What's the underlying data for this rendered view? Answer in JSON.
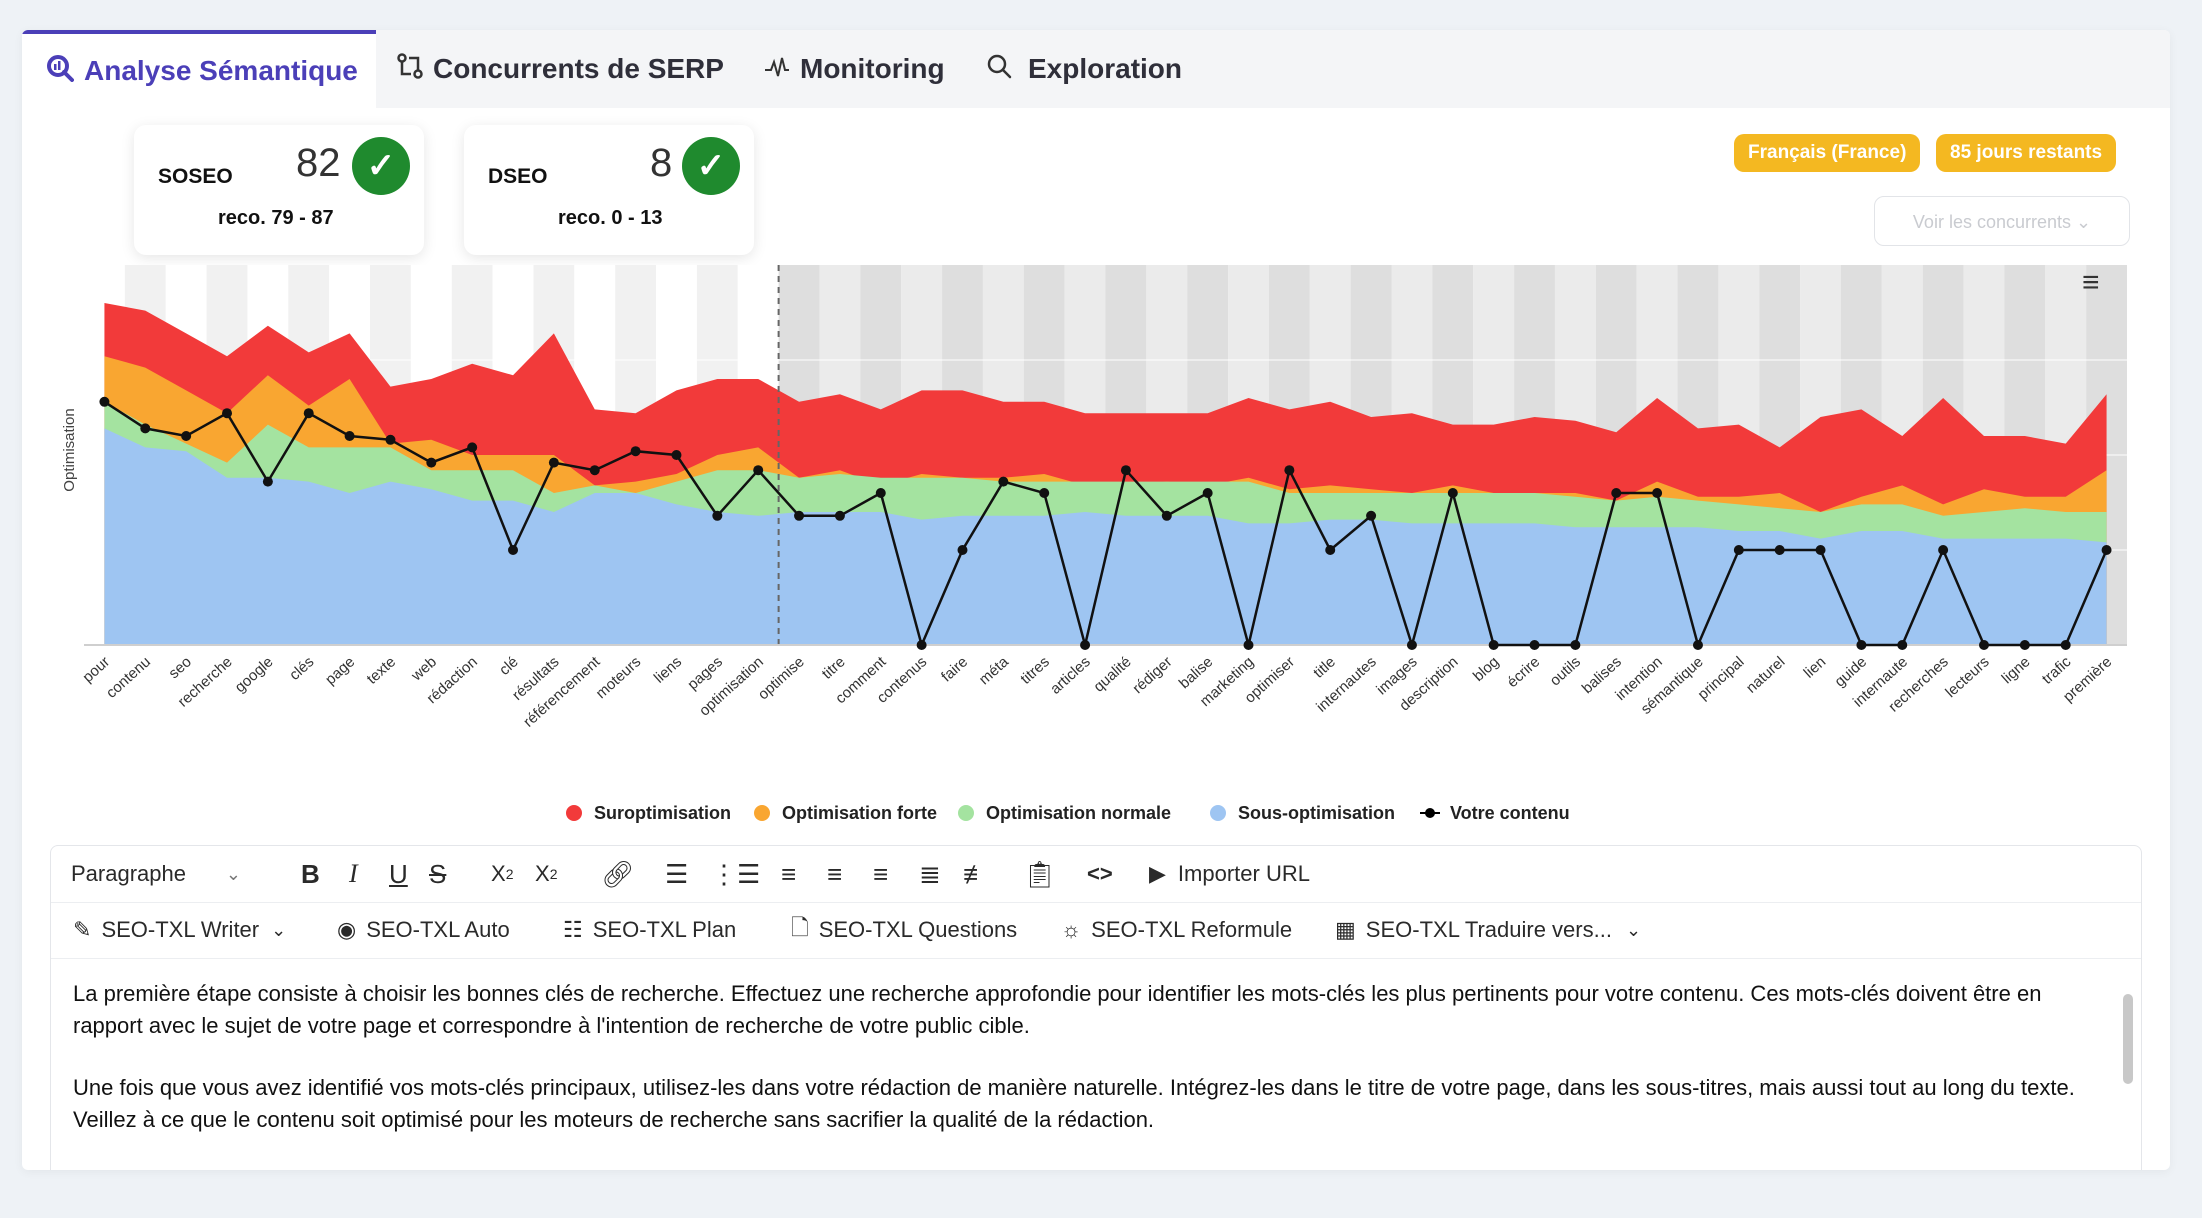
{
  "tabs": [
    {
      "label": "Analyse Sémantique",
      "icon": "search-analytics-icon",
      "active": true
    },
    {
      "label": "Concurrents de SERP",
      "icon": "compare-icon",
      "active": false
    },
    {
      "label": "Monitoring",
      "icon": "pulse-icon",
      "active": false
    },
    {
      "label": "Exploration",
      "icon": "search-icon",
      "active": false
    }
  ],
  "scores": {
    "soseo": {
      "label": "SOSEO",
      "value": "82",
      "reco": "reco. 79 - 87"
    },
    "dseo": {
      "label": "DSEO",
      "value": "8",
      "reco": "reco. 0 - 13"
    }
  },
  "badges": {
    "language": "Français (France)",
    "days": "85 jours restants"
  },
  "competitors_button": "Voir les concurrents ⌄",
  "colors": {
    "accent": "#4b3fb8",
    "badge": "#f4b821",
    "check": "#1f8a2e",
    "red": "#f23a3a",
    "orange": "#f9a631",
    "green": "#a4e3a0",
    "blue": "#9ec5f2"
  },
  "chart_data": {
    "type": "area",
    "ylabel": "Optimisation",
    "legend_position": "bottom",
    "x": [
      "pour",
      "contenu",
      "seo",
      "recherche",
      "google",
      "clés",
      "page",
      "texte",
      "web",
      "rédaction",
      "clé",
      "résultats",
      "référencement",
      "moteurs",
      "liens",
      "pages",
      "optimisation",
      "optimise",
      "titre",
      "comment",
      "contenus",
      "faire",
      "méta",
      "titres",
      "articles",
      "qualité",
      "rédiger",
      "balise",
      "marketing",
      "optimiser",
      "title",
      "internautes",
      "images",
      "description",
      "blog",
      "écrire",
      "outils",
      "balises",
      "intention",
      "sémantique",
      "principal",
      "naturel",
      "lien",
      "guide",
      "internaute",
      "recherches",
      "lecteurs",
      "ligne",
      "trafic",
      "première"
    ],
    "series": [
      {
        "name": "Sous-optimisation",
        "color": "#9ec5f2",
        "values": [
          57,
          52,
          51,
          44,
          44,
          43,
          40,
          43,
          41,
          38,
          38,
          35,
          40,
          40,
          37,
          35,
          34,
          35,
          35,
          35,
          33,
          34,
          34,
          34,
          35,
          34,
          34,
          34,
          32,
          32,
          33,
          33,
          32,
          32,
          32,
          32,
          31,
          31,
          31,
          31,
          30,
          30,
          28,
          30,
          30,
          28,
          28,
          28,
          28,
          27
        ]
      },
      {
        "name": "Optimisation normale",
        "color": "#a4e3a0",
        "values": [
          64,
          58,
          53,
          48,
          58,
          52,
          52,
          52,
          46,
          46,
          46,
          40,
          42,
          40,
          43,
          46,
          46,
          44,
          45,
          44,
          44,
          44,
          43,
          43,
          43,
          43,
          43,
          43,
          43,
          40,
          40,
          40,
          40,
          40,
          40,
          40,
          39,
          38,
          39,
          38,
          37,
          36,
          35,
          37,
          37,
          34,
          35,
          36,
          35,
          35
        ]
      },
      {
        "name": "Optimisation forte",
        "color": "#f9a631",
        "values": [
          76,
          73,
          67,
          61,
          71,
          63,
          70,
          53,
          54,
          50,
          50,
          50,
          42,
          43,
          45,
          50,
          52,
          44,
          46,
          42,
          45,
          44,
          44,
          45,
          42,
          42,
          43,
          42,
          44,
          41,
          42,
          41,
          40,
          42,
          40,
          40,
          40,
          38,
          43,
          39,
          39,
          40,
          35,
          39,
          42,
          37,
          41,
          39,
          39,
          46
        ]
      },
      {
        "name": "Suroptimisation",
        "color": "#f23a3a",
        "values": [
          90,
          88,
          82,
          76,
          84,
          77,
          82,
          68,
          70,
          74,
          71,
          82,
          62,
          61,
          67,
          70,
          70,
          64,
          66,
          62,
          67,
          67,
          64,
          64,
          61,
          61,
          61,
          61,
          65,
          62,
          64,
          60,
          61,
          58,
          58,
          60,
          59,
          56,
          65,
          57,
          58,
          52,
          60,
          62,
          55,
          65,
          55,
          55,
          53,
          66
        ]
      },
      {
        "name": "Votre contenu",
        "color": "#000000",
        "values": [
          64,
          57,
          55,
          61,
          43,
          61,
          55,
          54,
          48,
          52,
          25,
          48,
          46,
          51,
          50,
          34,
          46,
          34,
          34,
          40,
          0,
          25,
          43,
          40,
          0,
          46,
          34,
          40,
          0,
          46,
          25,
          34,
          0,
          40,
          0,
          0,
          0,
          40,
          40,
          0,
          25,
          25,
          25,
          0,
          0,
          25,
          0,
          0,
          0,
          25
        ]
      }
    ],
    "current_position_label_index": 17
  },
  "editor": {
    "format_select": "Paragraphe",
    "import_url": "Importer URL",
    "tools": [
      "SEO-TXL Writer",
      "SEO-TXL Auto",
      "SEO-TXL Plan",
      "SEO-TXL Questions",
      "SEO-TXL Reformule",
      "SEO-TXL Traduire vers..."
    ],
    "paragraphs": [
      "La première étape consiste à choisir les bonnes clés de recherche. Effectuez une recherche approfondie pour identifier les mots-clés les plus pertinents pour votre contenu. Ces mots-clés doivent être en rapport avec le sujet de votre page et correspondre à l'intention de recherche de votre public cible.",
      "Une fois que vous avez identifié vos mots-clés principaux, utilisez-les dans votre rédaction de manière naturelle. Intégrez-les dans le titre de votre page, dans les sous-titres, mais aussi tout au long du texte. Veillez à ce que le contenu soit optimisé pour les moteurs de recherche sans sacrifier la qualité de la rédaction."
    ]
  }
}
